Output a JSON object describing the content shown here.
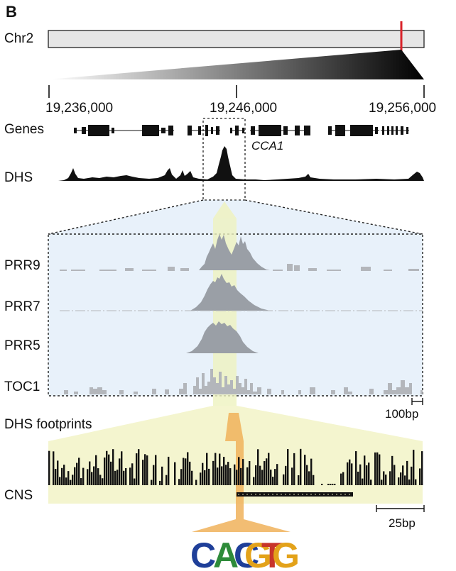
{
  "panel_label": "B",
  "chromosome": {
    "name": "Chr2"
  },
  "coordinates": [
    "19,236,000",
    "19,246,000",
    "19,256,000"
  ],
  "genes": {
    "track_label": "Genes",
    "highlight_gene": "CCA1"
  },
  "dhs": {
    "track_label": "DHS"
  },
  "chip_tracks": [
    "PRR9",
    "PRR7",
    "PRR5",
    "TOC1"
  ],
  "scale_bars": {
    "zoom": "100bp",
    "footprint": "25bp"
  },
  "footprints": {
    "label": "DHS footprints"
  },
  "cns": {
    "label": "CNS"
  },
  "motif": {
    "letters": [
      {
        "char": "C",
        "color": "#1f3f99"
      },
      {
        "char": "A",
        "color": "#2e8b3a"
      },
      {
        "char": "C",
        "color": "#1f3f99"
      },
      {
        "char": "G",
        "color": "#e3a21a"
      },
      {
        "char": "T",
        "color": "#c7342a"
      },
      {
        "char": "G",
        "color": "#e3a21a"
      }
    ]
  },
  "colors": {
    "highlight_marker": "#d9232a",
    "zoom_bg": "#e8f1fa",
    "footprint_bg": "#f4f5cf",
    "motif_band": "#f0b25a",
    "chip_fill": "#9a9fa6",
    "dhs_fill": "#111111"
  }
}
